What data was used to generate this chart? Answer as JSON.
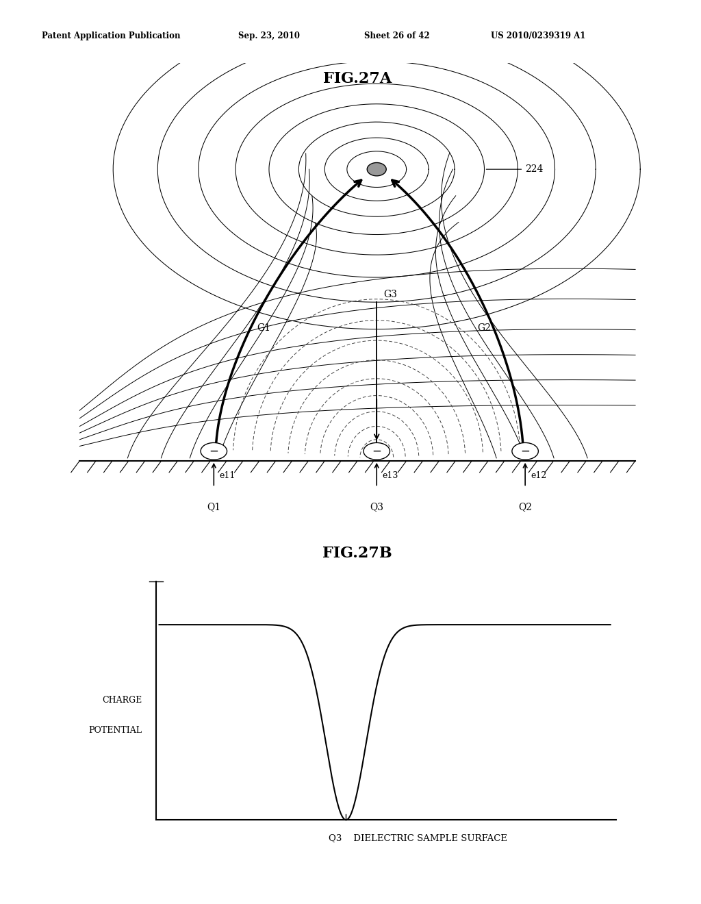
{
  "title_top": "Patent Application Publication",
  "title_date": "Sep. 23, 2010",
  "title_sheet": "Sheet 26 of 42",
  "title_patent": "US 2010/0239319 A1",
  "fig27a_title": "FIG.27A",
  "fig27b_title": "FIG.27B",
  "bg_color": "#ffffff",
  "label_224": "224",
  "label_G1": "G1",
  "label_G2": "G2",
  "label_G3": "G3",
  "label_e11": "e11",
  "label_e12": "e12",
  "label_e13": "e13",
  "label_Q1": "Q1",
  "label_Q2": "Q2",
  "label_Q3": "Q3",
  "label_charge_potential_line1": "CHARGE",
  "label_charge_potential_line2": "POTENTIAL",
  "label_dielectric": "Q3    DIELECTRIC SAMPLE SURFACE"
}
